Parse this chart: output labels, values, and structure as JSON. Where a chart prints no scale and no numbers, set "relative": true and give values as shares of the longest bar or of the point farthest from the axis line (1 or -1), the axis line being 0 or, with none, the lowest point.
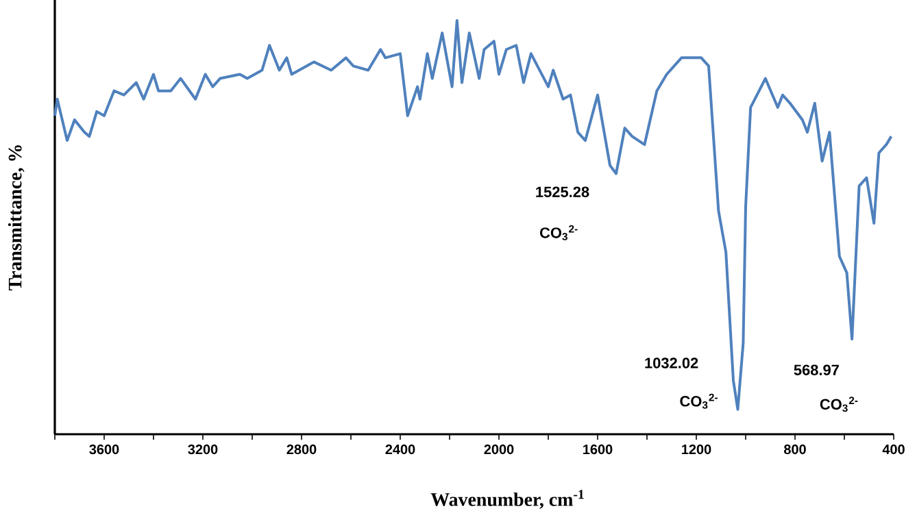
{
  "chart_data": {
    "type": "line",
    "relative": true,
    "xlabel": "Wavenumber, cm$^{-1}$",
    "ylabel": "Transmittance, %",
    "xlim": [
      3800,
      400
    ],
    "xticks": [
      {
        "value": 3800,
        "label": null
      },
      3600,
      {
        "value": 3400,
        "label": null
      },
      3200,
      {
        "value": 3000,
        "label": null
      },
      2800,
      {
        "value": 2600,
        "label": null
      },
      2400,
      {
        "value": 2200,
        "label": null
      },
      2000,
      {
        "value": 1800,
        "label": null
      },
      1600,
      {
        "value": 1400,
        "label": null
      },
      1200,
      {
        "value": 1000,
        "label": null
      },
      800,
      {
        "value": 600,
        "label": null
      },
      400
    ],
    "x": [
      3800,
      3790,
      3750,
      3720,
      3680,
      3660,
      3630,
      3600,
      3560,
      3520,
      3470,
      3440,
      3400,
      3380,
      3330,
      3290,
      3230,
      3190,
      3160,
      3130,
      3050,
      3020,
      2960,
      2930,
      2890,
      2860,
      2840,
      2750,
      2680,
      2620,
      2590,
      2530,
      2480,
      2460,
      2400,
      2370,
      2330,
      2320,
      2290,
      2270,
      2230,
      2190,
      2170,
      2150,
      2120,
      2080,
      2060,
      2020,
      2000,
      1970,
      1930,
      1900,
      1870,
      1800,
      1780,
      1740,
      1710,
      1680,
      1650,
      1600,
      1550,
      1525,
      1490,
      1460,
      1410,
      1360,
      1320,
      1260,
      1230,
      1180,
      1150,
      1110,
      1080,
      1050,
      1032,
      1010,
      1000,
      980,
      920,
      870,
      850,
      820,
      770,
      750,
      720,
      690,
      660,
      620,
      590,
      569,
      540,
      510,
      480,
      460,
      430,
      410
    ],
    "series": [
      {
        "color": "#4f81bd",
        "values": [
          0.77,
          0.81,
          0.71,
          0.76,
          0.73,
          0.72,
          0.78,
          0.77,
          0.83,
          0.82,
          0.85,
          0.81,
          0.87,
          0.83,
          0.83,
          0.86,
          0.81,
          0.87,
          0.84,
          0.86,
          0.87,
          0.86,
          0.88,
          0.94,
          0.88,
          0.91,
          0.87,
          0.9,
          0.88,
          0.91,
          0.89,
          0.88,
          0.93,
          0.91,
          0.92,
          0.77,
          0.84,
          0.81,
          0.92,
          0.86,
          0.97,
          0.84,
          1,
          0.85,
          0.97,
          0.86,
          0.93,
          0.95,
          0.87,
          0.93,
          0.94,
          0.85,
          0.92,
          0.84,
          0.88,
          0.81,
          0.82,
          0.73,
          0.71,
          0.82,
          0.65,
          0.63,
          0.74,
          0.72,
          0.7,
          0.83,
          0.87,
          0.91,
          0.91,
          0.91,
          0.89,
          0.54,
          0.44,
          0.13,
          0.06,
          0.22,
          0.55,
          0.79,
          0.86,
          0.79,
          0.82,
          0.8,
          0.76,
          0.73,
          0.8,
          0.66,
          0.73,
          0.43,
          0.39,
          0.23,
          0.6,
          0.62,
          0.51,
          0.68,
          0.7,
          0.72
        ]
      }
    ],
    "annotations": [
      "1525.28",
      "CO$_{3}$$^{2-}$",
      "1032.02",
      "CO$_{3}$$^{2-}$",
      "568.97",
      "CO$_{3}$$^{2-}$"
    ]
  }
}
